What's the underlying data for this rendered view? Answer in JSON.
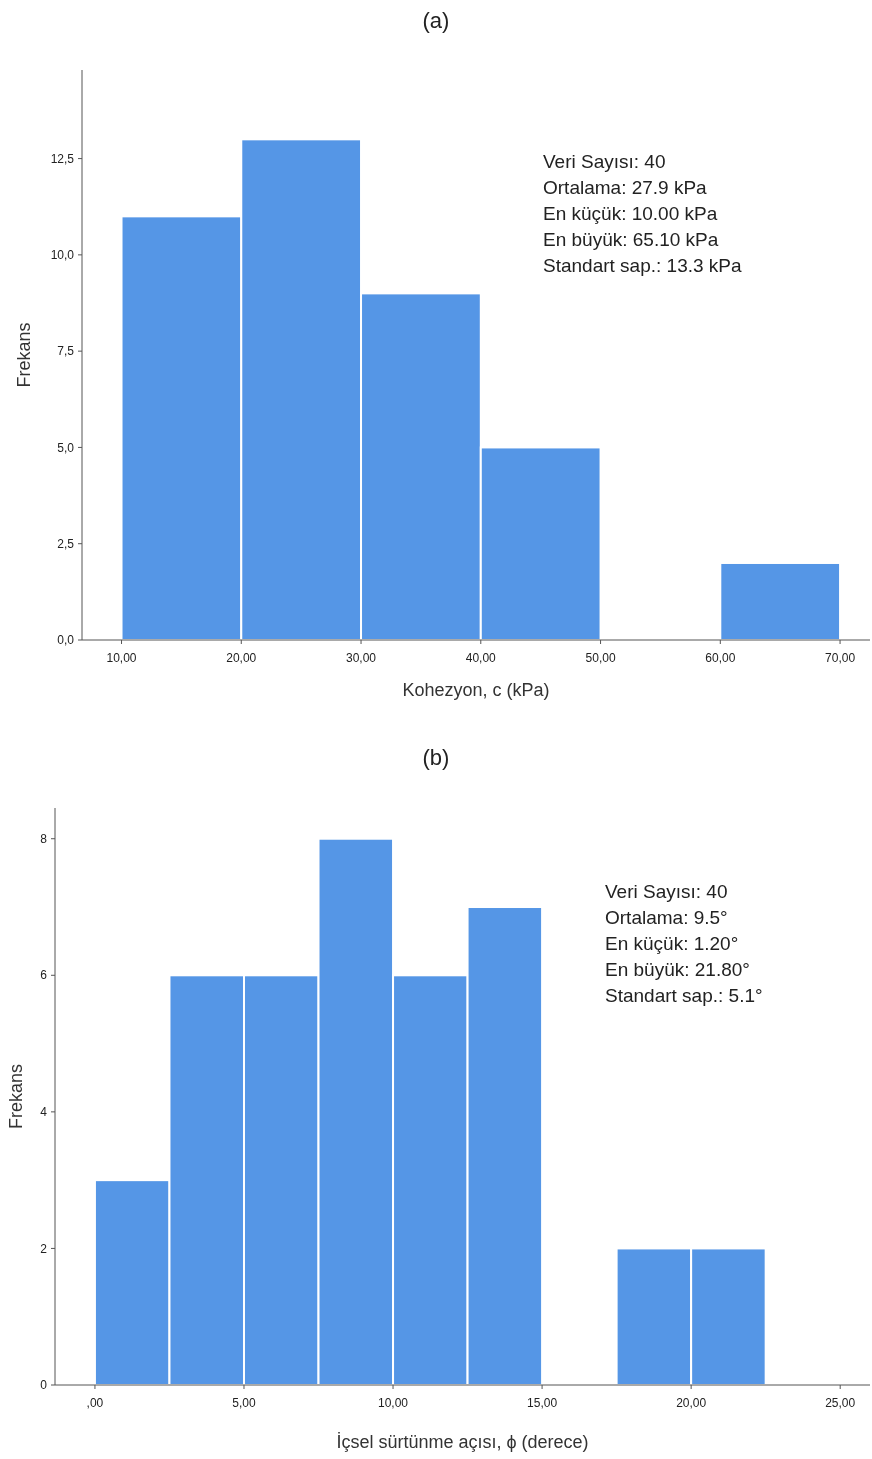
{
  "chart_data": [
    {
      "type": "histogram",
      "title": "(a)",
      "xlabel": "Kohezyon, c (kPa)",
      "ylabel": "Frekans",
      "bins": [
        10,
        20,
        30,
        40,
        50,
        60,
        70
      ],
      "values": [
        11,
        13,
        9,
        5,
        0,
        2
      ],
      "color": "#5596e6",
      "xlim": [
        6.7,
        72.5
      ],
      "ylim": [
        0,
        14.8
      ],
      "xticks": [
        {
          "value": 10,
          "label": "10,00"
        },
        {
          "value": 20,
          "label": "20,00"
        },
        {
          "value": 30,
          "label": "30,00"
        },
        {
          "value": 40,
          "label": "40,00"
        },
        {
          "value": 50,
          "label": "50,00"
        },
        {
          "value": 60,
          "label": "60,00"
        },
        {
          "value": 70,
          "label": "70,00"
        }
      ],
      "yticks": [
        {
          "value": 0,
          "label": "0,0"
        },
        {
          "value": 2.5,
          "label": "2,5"
        },
        {
          "value": 5,
          "label": "5,0"
        },
        {
          "value": 7.5,
          "label": "7,5"
        },
        {
          "value": 10,
          "label": "10,0"
        },
        {
          "value": 12.5,
          "label": "12,5"
        }
      ],
      "annotations": [
        "Veri Sayısı: 40",
        "Ortalama: 27.9 kPa",
        "En küçük: 10.00 kPa",
        "En büyük: 65.10 kPa",
        "Standart sap.: 13.3 kPa"
      ]
    },
    {
      "type": "histogram",
      "title": "(b)",
      "xlabel": "İçsel sürtünme açısı, ϕ (derece)",
      "ylabel": "Frekans",
      "bins": [
        0,
        2.5,
        5,
        7.5,
        10,
        12.5,
        15,
        17.5,
        20,
        22.5
      ],
      "values": [
        3,
        6,
        6,
        8,
        6,
        7,
        0,
        2,
        2
      ],
      "color": "#5596e6",
      "xlim": [
        -1.34,
        26
      ],
      "ylim": [
        0,
        8.45
      ],
      "xticks": [
        {
          "value": 0,
          "label": ",00"
        },
        {
          "value": 5,
          "label": "5,00"
        },
        {
          "value": 10,
          "label": "10,00"
        },
        {
          "value": 15,
          "label": "15,00"
        },
        {
          "value": 20,
          "label": "20,00"
        },
        {
          "value": 25,
          "label": "25,00"
        }
      ],
      "yticks": [
        0,
        2,
        4,
        6,
        8
      ],
      "annotations": [
        "Veri Sayısı: 40",
        "Ortalama: 9.5°",
        "En küçük: 1.20°",
        "En büyük: 21.80°",
        "Standart sap.: 5.1°"
      ]
    }
  ]
}
